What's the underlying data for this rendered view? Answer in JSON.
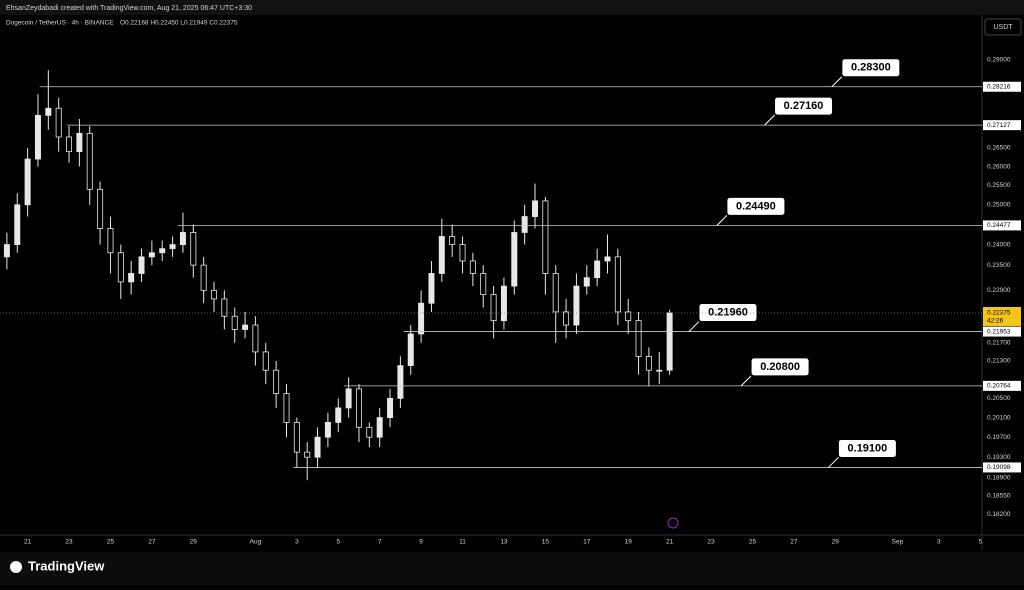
{
  "header": {
    "credit": "EhsanZeydabadi created with TradingView.com, Aug 21, 2025 06:47 UTC+3:30",
    "brand": "TradingView"
  },
  "chart_data": {
    "type": "candlestick",
    "title": "Dogecoin / TetherUS · 4h · BINANCE",
    "ohlc": "O0.22168 H0.22450 L0.21949 C0.22375",
    "currency": "USDT",
    "countdown": "42:26",
    "color": "#e8e8e8",
    "log_scale": true,
    "grid": false,
    "x": [
      3,
      6,
      9,
      12,
      15,
      18,
      21,
      24,
      27,
      30,
      33,
      36,
      39,
      42,
      45,
      48,
      51,
      54,
      57,
      60,
      63,
      66,
      69,
      72,
      75,
      78,
      81,
      84,
      87,
      90,
      93,
      96,
      99,
      102,
      105,
      108,
      111,
      114,
      117,
      120,
      123,
      126,
      129,
      132,
      135,
      138,
      141,
      144,
      147,
      150,
      153,
      156,
      159,
      162,
      165,
      168,
      171,
      174,
      177,
      180,
      183,
      186,
      189,
      192,
      195
    ],
    "open": [
      0.237,
      0.24,
      0.25,
      0.262,
      0.274,
      0.276,
      0.268,
      0.264,
      0.269,
      0.254,
      0.244,
      0.238,
      0.231,
      0.233,
      0.237,
      0.238,
      0.239,
      0.24,
      0.243,
      0.235,
      0.229,
      0.227,
      0.223,
      0.22,
      0.221,
      0.215,
      0.211,
      0.206,
      0.2,
      0.194,
      0.193,
      0.197,
      0.2,
      0.203,
      0.207,
      0.199,
      0.197,
      0.201,
      0.205,
      0.212,
      0.219,
      0.226,
      0.233,
      0.242,
      0.24,
      0.236,
      0.233,
      0.228,
      0.222,
      0.23,
      0.243,
      0.247,
      0.251,
      0.233,
      0.224,
      0.221,
      0.23,
      0.232,
      0.236,
      0.237,
      0.224,
      0.222,
      0.214,
      0.211,
      0.211
    ],
    "high": [
      0.243,
      0.253,
      0.265,
      0.28,
      0.287,
      0.279,
      0.271,
      0.273,
      0.271,
      0.256,
      0.247,
      0.24,
      0.236,
      0.239,
      0.241,
      0.241,
      0.242,
      0.248,
      0.245,
      0.237,
      0.231,
      0.229,
      0.225,
      0.224,
      0.223,
      0.217,
      0.213,
      0.208,
      0.201,
      0.196,
      0.199,
      0.202,
      0.205,
      0.2095,
      0.208,
      0.2,
      0.203,
      0.207,
      0.214,
      0.221,
      0.229,
      0.236,
      0.2465,
      0.245,
      0.242,
      0.238,
      0.235,
      0.23,
      0.232,
      0.246,
      0.25,
      0.2555,
      0.252,
      0.235,
      0.227,
      0.233,
      0.235,
      0.239,
      0.2425,
      0.239,
      0.227,
      0.224,
      0.216,
      0.215,
      0.2245
    ],
    "low": [
      0.234,
      0.238,
      0.247,
      0.26,
      0.27,
      0.264,
      0.261,
      0.26,
      0.25,
      0.24,
      0.233,
      0.227,
      0.228,
      0.231,
      0.235,
      0.236,
      0.237,
      0.238,
      0.232,
      0.226,
      0.224,
      0.22,
      0.217,
      0.218,
      0.212,
      0.208,
      0.203,
      0.197,
      0.191,
      0.1885,
      0.191,
      0.195,
      0.198,
      0.201,
      0.196,
      0.195,
      0.195,
      0.199,
      0.203,
      0.21,
      0.217,
      0.224,
      0.231,
      0.237,
      0.233,
      0.23,
      0.225,
      0.218,
      0.22,
      0.228,
      0.24,
      0.244,
      0.228,
      0.217,
      0.218,
      0.219,
      0.228,
      0.23,
      0.233,
      0.221,
      0.219,
      0.21,
      0.2075,
      0.208,
      0.21
    ],
    "close": [
      0.24,
      0.25,
      0.262,
      0.274,
      0.276,
      0.268,
      0.264,
      0.269,
      0.254,
      0.244,
      0.238,
      0.231,
      0.233,
      0.237,
      0.238,
      0.239,
      0.24,
      0.243,
      0.235,
      0.229,
      0.227,
      0.223,
      0.22,
      0.221,
      0.215,
      0.211,
      0.206,
      0.2,
      0.194,
      0.193,
      0.197,
      0.2,
      0.203,
      0.207,
      0.199,
      0.197,
      0.201,
      0.205,
      0.212,
      0.219,
      0.226,
      0.233,
      0.242,
      0.24,
      0.236,
      0.233,
      0.228,
      0.222,
      0.23,
      0.243,
      0.247,
      0.251,
      0.233,
      0.224,
      0.221,
      0.23,
      0.232,
      0.236,
      0.237,
      0.224,
      0.222,
      0.214,
      0.211,
      0.211,
      0.22375
    ],
    "xlim": [
      1,
      285.5
    ],
    "ylim": [
      0.1782,
      0.3037
    ],
    "xticks": [
      {
        "value": 9,
        "label": "21"
      },
      {
        "value": 21,
        "label": "23"
      },
      {
        "value": 33,
        "label": "25"
      },
      {
        "value": 45,
        "label": "27"
      },
      {
        "value": 57,
        "label": "29"
      },
      {
        "value": 75,
        "label": "Aug"
      },
      {
        "value": 87,
        "label": "3"
      },
      {
        "value": 99,
        "label": "5"
      },
      {
        "value": 111,
        "label": "7"
      },
      {
        "value": 123,
        "label": "9"
      },
      {
        "value": 135,
        "label": "11"
      },
      {
        "value": 147,
        "label": "13"
      },
      {
        "value": 159,
        "label": "15"
      },
      {
        "value": 171,
        "label": "17"
      },
      {
        "value": 183,
        "label": "19"
      },
      {
        "value": 195,
        "label": "21"
      },
      {
        "value": 207,
        "label": "23"
      },
      {
        "value": 219,
        "label": "25"
      },
      {
        "value": 231,
        "label": "27"
      },
      {
        "value": 243,
        "label": "29"
      },
      {
        "value": 261,
        "label": "Sep"
      },
      {
        "value": 273,
        "label": "3"
      },
      {
        "value": 285,
        "label": "5"
      }
    ],
    "yticks": [
      {
        "value": 0.29,
        "label": "0.29000"
      },
      {
        "value": 0.265,
        "label": "0.26500"
      },
      {
        "value": 0.26,
        "label": "0.26000"
      },
      {
        "value": 0.255,
        "label": "0.25500"
      },
      {
        "value": 0.25,
        "label": "0.25000"
      },
      {
        "value": 0.24,
        "label": "0.24000"
      },
      {
        "value": 0.235,
        "label": "0.23500"
      },
      {
        "value": 0.229,
        "label": "0.22900"
      },
      {
        "value": 0.217,
        "label": "0.21700"
      },
      {
        "value": 0.213,
        "label": "0.21300"
      },
      {
        "value": 0.205,
        "label": "0.20500"
      },
      {
        "value": 0.201,
        "label": "0.20100"
      },
      {
        "value": 0.197,
        "label": "0.19700"
      },
      {
        "value": 0.193,
        "label": "0.19300"
      },
      {
        "value": 0.189,
        "label": "0.18900"
      },
      {
        "value": 0.1855,
        "label": "0.18550"
      },
      {
        "value": 0.182,
        "label": "0.18200"
      }
    ],
    "levels": [
      {
        "value": 0.28216,
        "label": "0.28216",
        "start": 12.5,
        "note": "0.28300",
        "note_x": 242
      },
      {
        "value": 0.27127,
        "label": "0.27127",
        "start": 20.4,
        "note": "0.27160",
        "note_x": 222.5
      },
      {
        "value": 0.24477,
        "label": "0.24477",
        "start": 52.5,
        "note": "0.24490",
        "note_x": 208.7
      },
      {
        "value": 0.21953,
        "label": "0.21953",
        "start": 118,
        "note": "0.21960",
        "note_x": 200.6
      },
      {
        "value": 0.20764,
        "label": "0.20764",
        "start": 100.6,
        "note": "0.20800",
        "note_x": 215.7
      },
      {
        "value": 0.19098,
        "label": "0.19098",
        "start": 86,
        "note": "0.19100",
        "note_x": 241
      }
    ]
  }
}
